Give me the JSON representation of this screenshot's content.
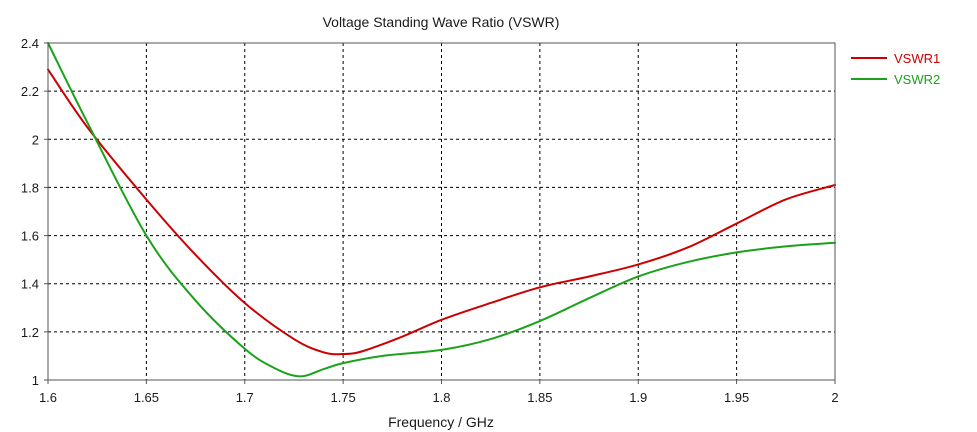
{
  "chart_data": {
    "type": "line",
    "title": "Voltage Standing Wave Ratio (VSWR)",
    "xlabel": "Frequency / GHz",
    "ylabel": "",
    "xlim": [
      1.6,
      2.0
    ],
    "ylim": [
      1.0,
      2.4
    ],
    "xticks": [
      1.6,
      1.65,
      1.7,
      1.75,
      1.8,
      1.85,
      1.9,
      1.95,
      2.0
    ],
    "xtick_labels": [
      "1.6",
      "1.65",
      "1.7",
      "1.75",
      "1.8",
      "1.85",
      "1.9",
      "1.95",
      "2"
    ],
    "yticks": [
      1.0,
      1.2,
      1.4,
      1.6,
      1.8,
      2.0,
      2.2,
      2.4
    ],
    "ytick_labels": [
      "1",
      "1.2",
      "1.4",
      "1.6",
      "1.8",
      "2",
      "2.2",
      "2.4"
    ],
    "grid": true,
    "legend_position": "right",
    "series": [
      {
        "name": "VSWR1",
        "color": "#cc0000",
        "x": [
          1.6,
          1.62,
          1.65,
          1.675,
          1.7,
          1.725,
          1.74,
          1.75,
          1.76,
          1.78,
          1.8,
          1.825,
          1.85,
          1.875,
          1.9,
          1.925,
          1.95,
          1.975,
          2.0
        ],
        "y": [
          2.29,
          2.05,
          1.75,
          1.52,
          1.32,
          1.17,
          1.115,
          1.108,
          1.12,
          1.18,
          1.25,
          1.32,
          1.385,
          1.43,
          1.48,
          1.55,
          1.65,
          1.75,
          1.81
        ]
      },
      {
        "name": "VSWR2",
        "color": "#1aa21a",
        "x": [
          1.6,
          1.62,
          1.65,
          1.675,
          1.7,
          1.715,
          1.728,
          1.74,
          1.75,
          1.77,
          1.8,
          1.825,
          1.85,
          1.875,
          1.9,
          1.925,
          1.95,
          1.975,
          2.0
        ],
        "y": [
          2.4,
          2.07,
          1.6,
          1.33,
          1.13,
          1.05,
          1.015,
          1.045,
          1.07,
          1.1,
          1.125,
          1.17,
          1.245,
          1.34,
          1.43,
          1.49,
          1.53,
          1.555,
          1.57
        ]
      }
    ]
  }
}
